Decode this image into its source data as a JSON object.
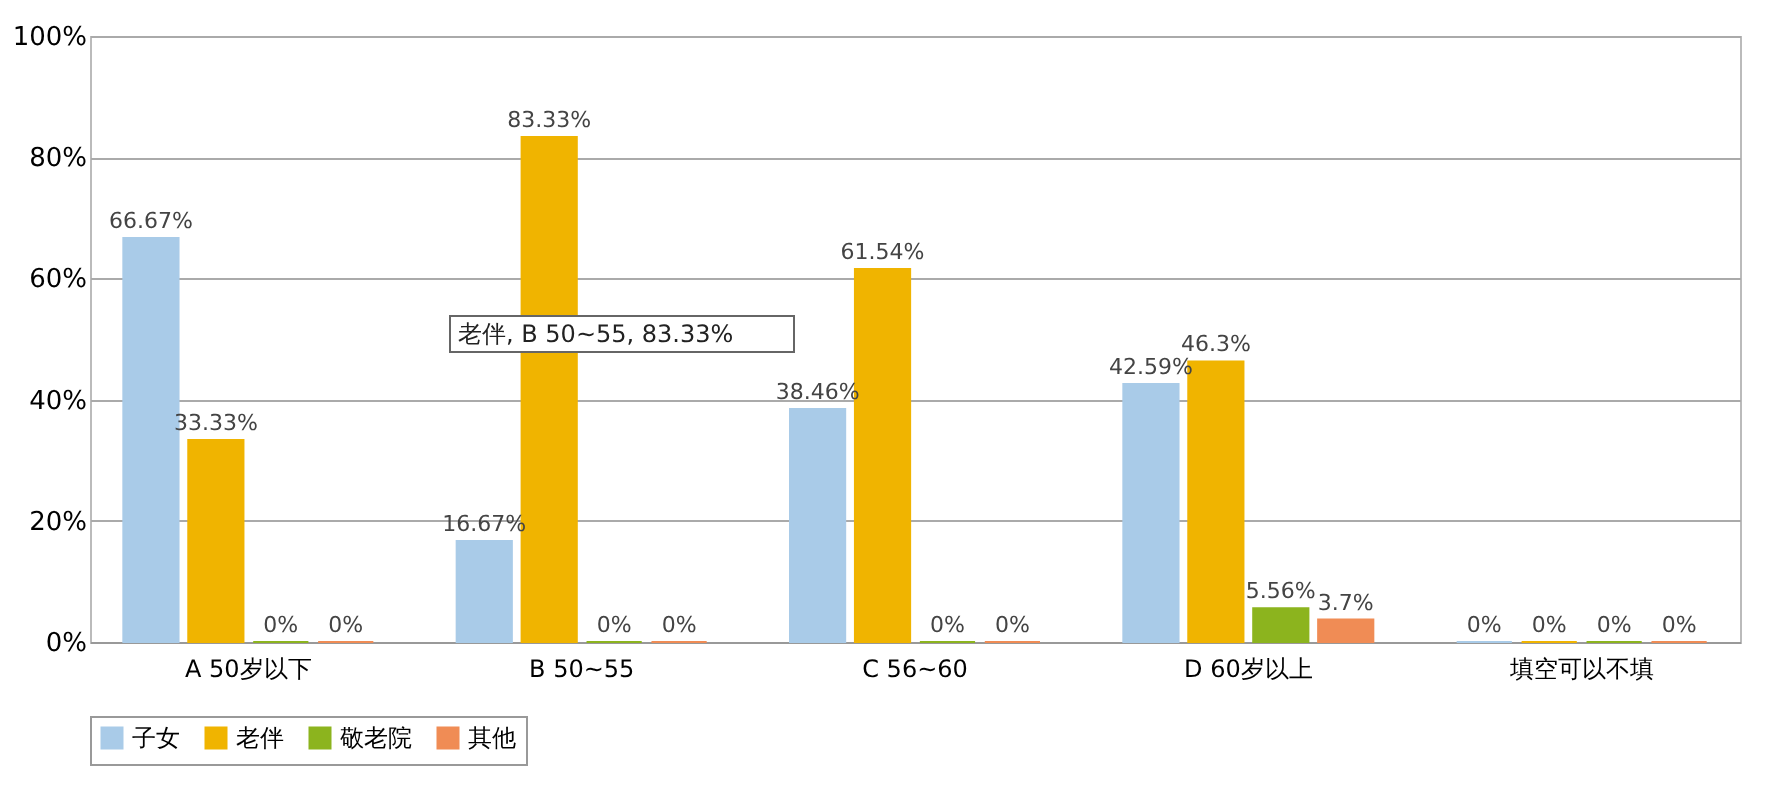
{
  "chart_data": {
    "type": "bar",
    "categories": [
      "A    50岁以下",
      "B    50~55",
      "C    56~60",
      "D    60岁以上",
      "填空可以不填"
    ],
    "series": [
      {
        "name": "子女",
        "color": "#a9cbe8",
        "values": [
          66.67,
          16.67,
          38.46,
          42.59,
          0
        ],
        "value_labels": [
          "66.67%",
          "16.67%",
          "38.46%",
          "42.59%",
          "0%"
        ]
      },
      {
        "name": "老伴",
        "color": "#f0b400",
        "values": [
          33.33,
          83.33,
          61.54,
          46.3,
          0
        ],
        "value_labels": [
          "33.33%",
          "83.33%",
          "61.54%",
          "46.3%",
          "0%"
        ]
      },
      {
        "name": "敬老院",
        "color": "#8cb41e",
        "values": [
          0,
          0,
          0,
          5.56,
          0
        ],
        "value_labels": [
          "0%",
          "0%",
          "0%",
          "5.56%",
          "0%"
        ]
      },
      {
        "name": "其他",
        "color": "#f08c55",
        "values": [
          0,
          0,
          0,
          3.7,
          0
        ],
        "value_labels": [
          "0%",
          "0%",
          "0%",
          "3.7%",
          "0%"
        ]
      }
    ],
    "ylim": [
      0,
      100
    ],
    "yticks": [
      {
        "value": 0,
        "label": "0%"
      },
      {
        "value": 20,
        "label": "20%"
      },
      {
        "value": 40,
        "label": "40%"
      },
      {
        "value": 60,
        "label": "60%"
      },
      {
        "value": 80,
        "label": "80%"
      },
      {
        "value": 100,
        "label": "100%"
      }
    ],
    "grid": "y",
    "legend": "bottom",
    "annotations": [
      "老伴, B    50~55, 83.33%"
    ]
  }
}
